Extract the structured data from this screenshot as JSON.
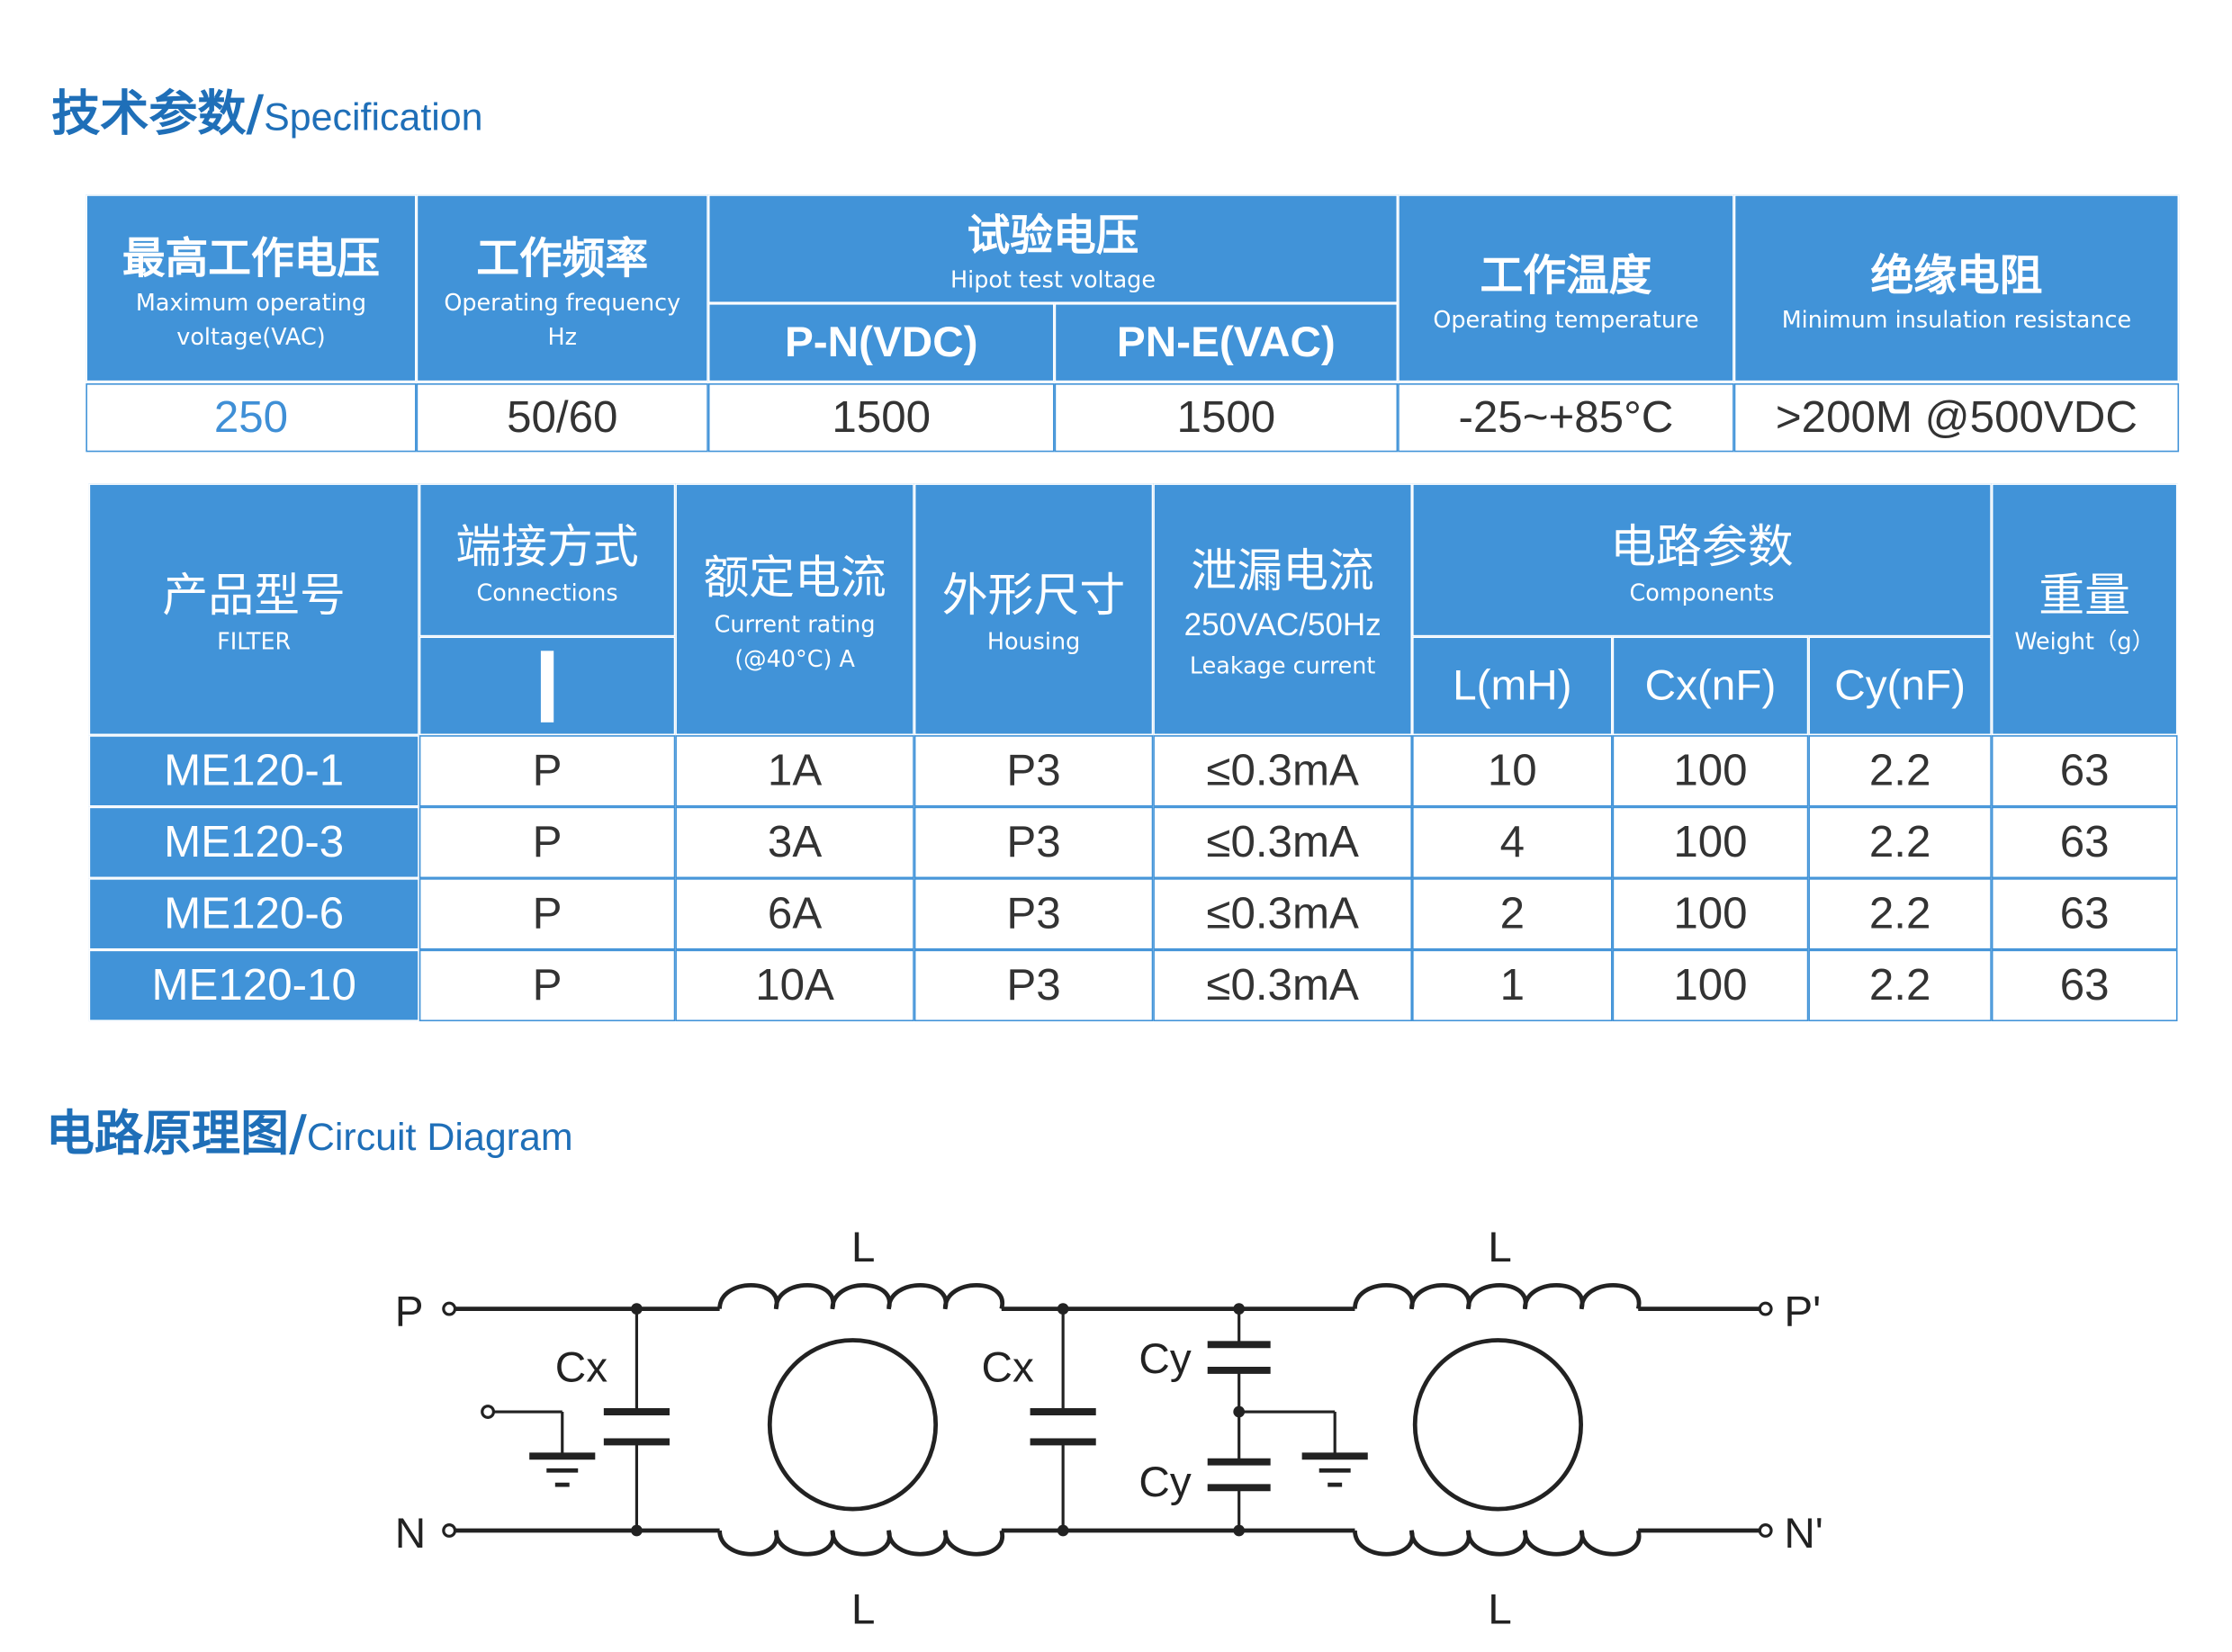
{
  "spec_title": {
    "cn": "技术参数/",
    "en": "Specification"
  },
  "circuit_title": {
    "cn": "电路原理图/",
    "en": "Circuit Diagram"
  },
  "table1": {
    "headers": [
      {
        "cn": "最高工作电压",
        "en": "Maximum operating voltage(VAC)"
      },
      {
        "cn": "工作频率",
        "en": "Operating frequency Hz"
      },
      {
        "cn": "试验电压",
        "en": "Hipot test voltage",
        "sub": [
          "P-N(VDC)",
          "PN-E(VAC)"
        ]
      },
      {
        "cn": "工作温度",
        "en": "Operating temperature"
      },
      {
        "cn": "绝缘电阻",
        "en": "Minimum insulation resistance"
      }
    ],
    "row": [
      "250",
      "50/60",
      "1500",
      "1500",
      "-25~+85°C",
      ">200M @500VDC"
    ]
  },
  "table2": {
    "headers": {
      "model": {
        "cn": "产品型号",
        "en": "FILTER"
      },
      "connections": {
        "cn": "端接方式",
        "en": "Connections",
        "symbol": "I"
      },
      "current": {
        "cn": "额定电流",
        "en": "Current rating (@40°C)  A"
      },
      "housing": {
        "cn": "外形尺寸",
        "en": "Housing"
      },
      "leakage": {
        "cn": "泄漏电流",
        "mid": "250VAC/50Hz",
        "en": "Leakage current"
      },
      "components": {
        "cn": "电路参数",
        "en": "Components",
        "sub": [
          "L(mH)",
          "Cx(nF)",
          "Cy(nF)"
        ]
      },
      "weight": {
        "cn": "重量",
        "en": "Weight（g）"
      }
    },
    "rows": [
      [
        "ME120-1",
        "P",
        "1A",
        "P3",
        "≤0.3mA",
        "10",
        "100",
        "2.2",
        "63"
      ],
      [
        "ME120-3",
        "P",
        "3A",
        "P3",
        "≤0.3mA",
        "4",
        "100",
        "2.2",
        "63"
      ],
      [
        "ME120-6",
        "P",
        "6A",
        "P3",
        "≤0.3mA",
        "2",
        "100",
        "2.2",
        "63"
      ],
      [
        "ME120-10",
        "P",
        "10A",
        "P3",
        "≤0.3mA",
        "1",
        "100",
        "2.2",
        "63"
      ]
    ]
  },
  "circuit": {
    "labels": {
      "p": "P",
      "n": "N",
      "p2": "P'",
      "n2": "N'",
      "l": "L",
      "cx": "Cx",
      "cy": "Cy"
    }
  },
  "colors": {
    "accent": "#4193d8",
    "title": "#1f6fb8"
  }
}
